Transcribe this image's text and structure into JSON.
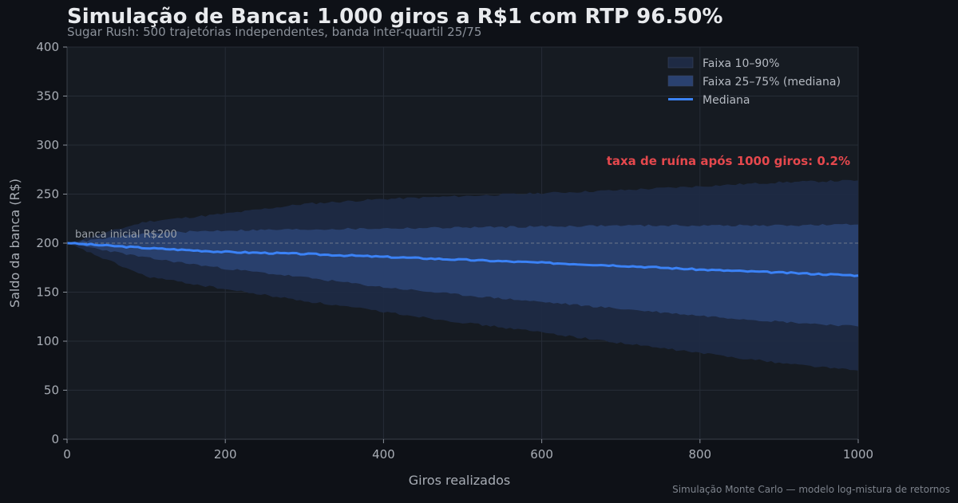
{
  "chart_data": {
    "type": "area",
    "title": "Simulação de Banca: 1.000 giros a R$1 com RTP 96.50%",
    "subtitle": "Sugar Rush: 500 trajetórias independentes, banda inter-quartil 25/75",
    "xlabel": "Giros realizados",
    "ylabel": "Saldo da banca (R$)",
    "xlim": [
      0,
      1000
    ],
    "ylim": [
      0,
      400
    ],
    "xticks": [
      0,
      200,
      400,
      600,
      800,
      1000
    ],
    "yticks": [
      0,
      50,
      100,
      150,
      200,
      250,
      300,
      350,
      400
    ],
    "grid": true,
    "legend_position": "top-right",
    "x": [
      0,
      100,
      200,
      300,
      400,
      500,
      600,
      700,
      800,
      900,
      1000
    ],
    "series": [
      {
        "name": "Faixa 10–90%",
        "kind": "band",
        "color": "#1e2a44",
        "lower": [
          200,
          166,
          153,
          141,
          130,
          119,
          109,
          98,
          88,
          78,
          70
        ],
        "upper": [
          200,
          222,
          230,
          240,
          245,
          248,
          251,
          254,
          258,
          262,
          264
        ]
      },
      {
        "name": "Faixa 25–75% (mediana)",
        "kind": "band",
        "color": "#2a4170",
        "lower": [
          200,
          185,
          174,
          165,
          155,
          147,
          140,
          133,
          126,
          120,
          115
        ],
        "upper": [
          200,
          210,
          213,
          214,
          215,
          216,
          217,
          218,
          218,
          218,
          219
        ]
      },
      {
        "name": "Mediana",
        "kind": "line",
        "color": "#3b82f6",
        "values": [
          200,
          195,
          191,
          189,
          186,
          183,
          180,
          177,
          173,
          170,
          167
        ]
      }
    ],
    "reference_line": {
      "y": 200,
      "label": "banca inicial R$200"
    },
    "annotation": {
      "text": "taxa de ruína após 1000 giros: 0.2%",
      "color": "#e5484d"
    },
    "footer": "Simulação Monte Carlo — modelo log-mistura de retornos"
  }
}
